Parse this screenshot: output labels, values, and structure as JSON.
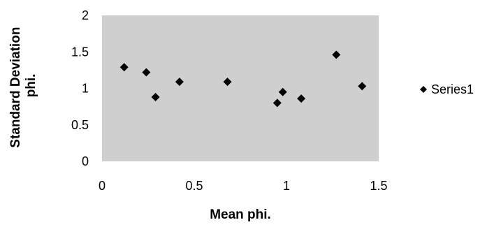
{
  "chart_data": {
    "type": "scatter",
    "title": "",
    "xlabel": "Mean phi.",
    "ylabel_lines": [
      "Standard Deviation",
      "phi."
    ],
    "xlim": [
      0,
      1.5
    ],
    "ylim": [
      0,
      2
    ],
    "x_ticks": [
      0,
      0.5,
      1,
      1.5
    ],
    "x_tick_labels": [
      "0",
      "0.5",
      "1",
      "1.5"
    ],
    "y_ticks": [
      0,
      0.5,
      1,
      1.5,
      2
    ],
    "y_tick_labels": [
      "0",
      "0.5",
      "1",
      "1.5",
      "2"
    ],
    "grid": false,
    "legend_position": "right",
    "plot_area_color": "#cfcfcf",
    "marker": "diamond",
    "marker_color": "#000000",
    "series": [
      {
        "name": "Series1",
        "points": [
          {
            "x": 0.12,
            "y": 1.29
          },
          {
            "x": 0.24,
            "y": 1.22
          },
          {
            "x": 0.29,
            "y": 0.88
          },
          {
            "x": 0.42,
            "y": 1.09
          },
          {
            "x": 0.68,
            "y": 1.09
          },
          {
            "x": 0.95,
            "y": 0.8
          },
          {
            "x": 0.98,
            "y": 0.95
          },
          {
            "x": 1.08,
            "y": 0.86
          },
          {
            "x": 1.27,
            "y": 1.46
          },
          {
            "x": 1.41,
            "y": 1.03
          }
        ]
      }
    ]
  }
}
